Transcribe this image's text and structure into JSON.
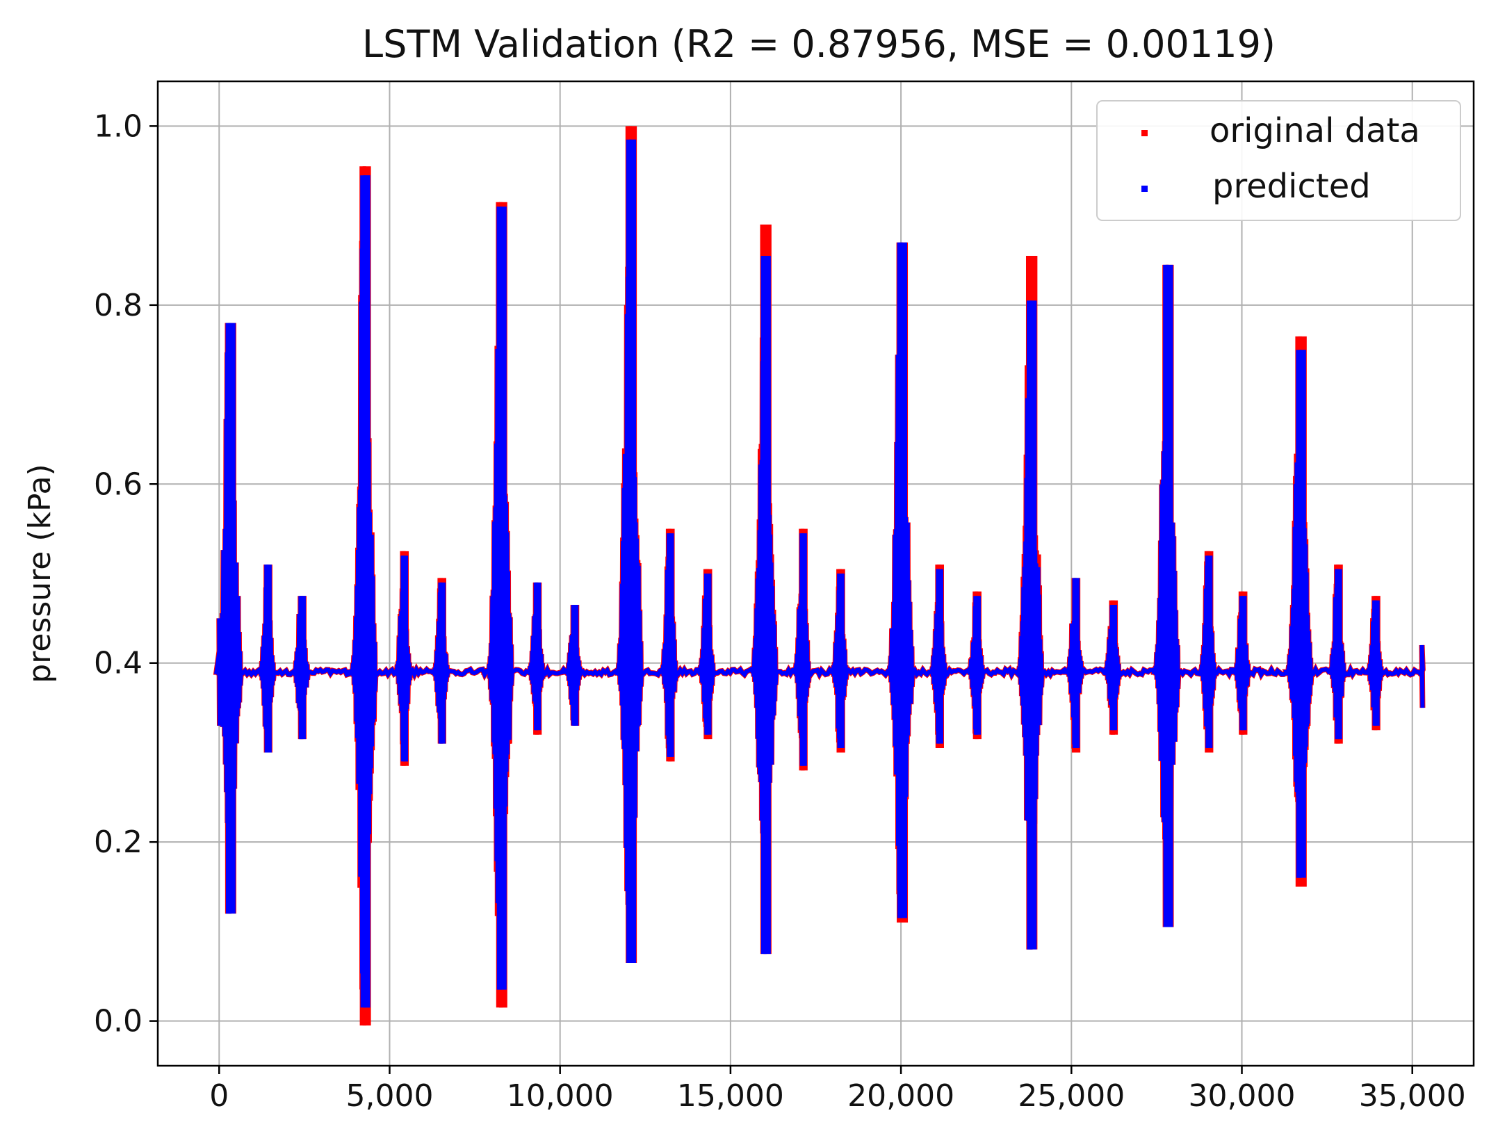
{
  "chart_data": {
    "type": "line",
    "title": "LSTM Validation (R2 =  0.87956, MSE =  0.00119)",
    "xlabel": "",
    "ylabel": "pressure (kPa)",
    "xlim": [
      -1800,
      36800
    ],
    "ylim": [
      -0.05,
      1.05
    ],
    "x_ticks": [
      0,
      5000,
      10000,
      15000,
      20000,
      25000,
      30000,
      35000
    ],
    "x_tick_labels": [
      "0",
      "5,000",
      "10,000",
      "15,000",
      "20,000",
      "25,000",
      "30,000",
      "35,000"
    ],
    "y_ticks": [
      0.0,
      0.2,
      0.4,
      0.6,
      0.8,
      1.0
    ],
    "y_tick_labels": [
      "0.0",
      "0.2",
      "0.4",
      "0.6",
      "0.8",
      "1.0"
    ],
    "grid": true,
    "legend_position": "top-right",
    "baseline": 0.39,
    "x_end": 35300,
    "colors": {
      "original": "#ff0000",
      "predicted": "#0000ff",
      "grid": "#b0b0b0",
      "axes": "#000000",
      "legend_border": "#cccccc"
    },
    "series": [
      {
        "name": "original data",
        "color": "#ff0000",
        "major_events": [
          {
            "x": 300,
            "peak": 0.78,
            "trough": 0.12
          },
          {
            "x": 4250,
            "peak": 0.955,
            "trough": -0.005
          },
          {
            "x": 8250,
            "peak": 0.915,
            "trough": 0.015
          },
          {
            "x": 12050,
            "peak": 1.0,
            "trough": 0.065
          },
          {
            "x": 16000,
            "peak": 0.89,
            "trough": 0.075
          },
          {
            "x": 20000,
            "peak": 0.87,
            "trough": 0.11
          },
          {
            "x": 23800,
            "peak": 0.855,
            "trough": 0.08
          },
          {
            "x": 27800,
            "peak": 0.845,
            "trough": 0.105
          },
          {
            "x": 31700,
            "peak": 0.765,
            "trough": 0.15
          }
        ],
        "minor_events": [
          {
            "x": 1400,
            "peak": 0.51,
            "trough": 0.3
          },
          {
            "x": 2400,
            "peak": 0.475,
            "trough": 0.315
          },
          {
            "x": 5400,
            "peak": 0.525,
            "trough": 0.285
          },
          {
            "x": 6500,
            "peak": 0.495,
            "trough": 0.31
          },
          {
            "x": 9300,
            "peak": 0.49,
            "trough": 0.32
          },
          {
            "x": 10400,
            "peak": 0.465,
            "trough": 0.33
          },
          {
            "x": 13200,
            "peak": 0.55,
            "trough": 0.29
          },
          {
            "x": 14300,
            "peak": 0.505,
            "trough": 0.315
          },
          {
            "x": 17100,
            "peak": 0.55,
            "trough": 0.28
          },
          {
            "x": 18200,
            "peak": 0.505,
            "trough": 0.3
          },
          {
            "x": 21100,
            "peak": 0.51,
            "trough": 0.305
          },
          {
            "x": 22200,
            "peak": 0.48,
            "trough": 0.315
          },
          {
            "x": 25100,
            "peak": 0.495,
            "trough": 0.3
          },
          {
            "x": 26200,
            "peak": 0.47,
            "trough": 0.32
          },
          {
            "x": 29000,
            "peak": 0.525,
            "trough": 0.3
          },
          {
            "x": 30000,
            "peak": 0.48,
            "trough": 0.32
          },
          {
            "x": 32800,
            "peak": 0.51,
            "trough": 0.31
          },
          {
            "x": 33900,
            "peak": 0.475,
            "trough": 0.325
          }
        ]
      },
      {
        "name": "predicted",
        "color": "#0000ff",
        "major_events": [
          {
            "x": 300,
            "peak": 0.78,
            "trough": 0.12
          },
          {
            "x": 4250,
            "peak": 0.945,
            "trough": 0.015
          },
          {
            "x": 8250,
            "peak": 0.91,
            "trough": 0.035
          },
          {
            "x": 12050,
            "peak": 0.985,
            "trough": 0.065
          },
          {
            "x": 16000,
            "peak": 0.855,
            "trough": 0.075
          },
          {
            "x": 20000,
            "peak": 0.87,
            "trough": 0.115
          },
          {
            "x": 23800,
            "peak": 0.805,
            "trough": 0.08
          },
          {
            "x": 27800,
            "peak": 0.845,
            "trough": 0.105
          },
          {
            "x": 31700,
            "peak": 0.75,
            "trough": 0.16
          }
        ],
        "minor_events": [
          {
            "x": 1400,
            "peak": 0.51,
            "trough": 0.3
          },
          {
            "x": 2400,
            "peak": 0.475,
            "trough": 0.315
          },
          {
            "x": 5400,
            "peak": 0.52,
            "trough": 0.29
          },
          {
            "x": 6500,
            "peak": 0.49,
            "trough": 0.31
          },
          {
            "x": 9300,
            "peak": 0.49,
            "trough": 0.325
          },
          {
            "x": 10400,
            "peak": 0.465,
            "trough": 0.33
          },
          {
            "x": 13200,
            "peak": 0.545,
            "trough": 0.295
          },
          {
            "x": 14300,
            "peak": 0.5,
            "trough": 0.32
          },
          {
            "x": 17100,
            "peak": 0.545,
            "trough": 0.285
          },
          {
            "x": 18200,
            "peak": 0.5,
            "trough": 0.305
          },
          {
            "x": 21100,
            "peak": 0.505,
            "trough": 0.31
          },
          {
            "x": 22200,
            "peak": 0.475,
            "trough": 0.32
          },
          {
            "x": 25100,
            "peak": 0.495,
            "trough": 0.305
          },
          {
            "x": 26200,
            "peak": 0.465,
            "trough": 0.325
          },
          {
            "x": 29000,
            "peak": 0.52,
            "trough": 0.305
          },
          {
            "x": 30000,
            "peak": 0.475,
            "trough": 0.325
          },
          {
            "x": 32800,
            "peak": 0.505,
            "trough": 0.315
          },
          {
            "x": 33900,
            "peak": 0.47,
            "trough": 0.33
          }
        ]
      }
    ],
    "legend": [
      {
        "label": "original data",
        "color": "#ff0000"
      },
      {
        "label": "predicted",
        "color": "#0000ff"
      }
    ]
  }
}
